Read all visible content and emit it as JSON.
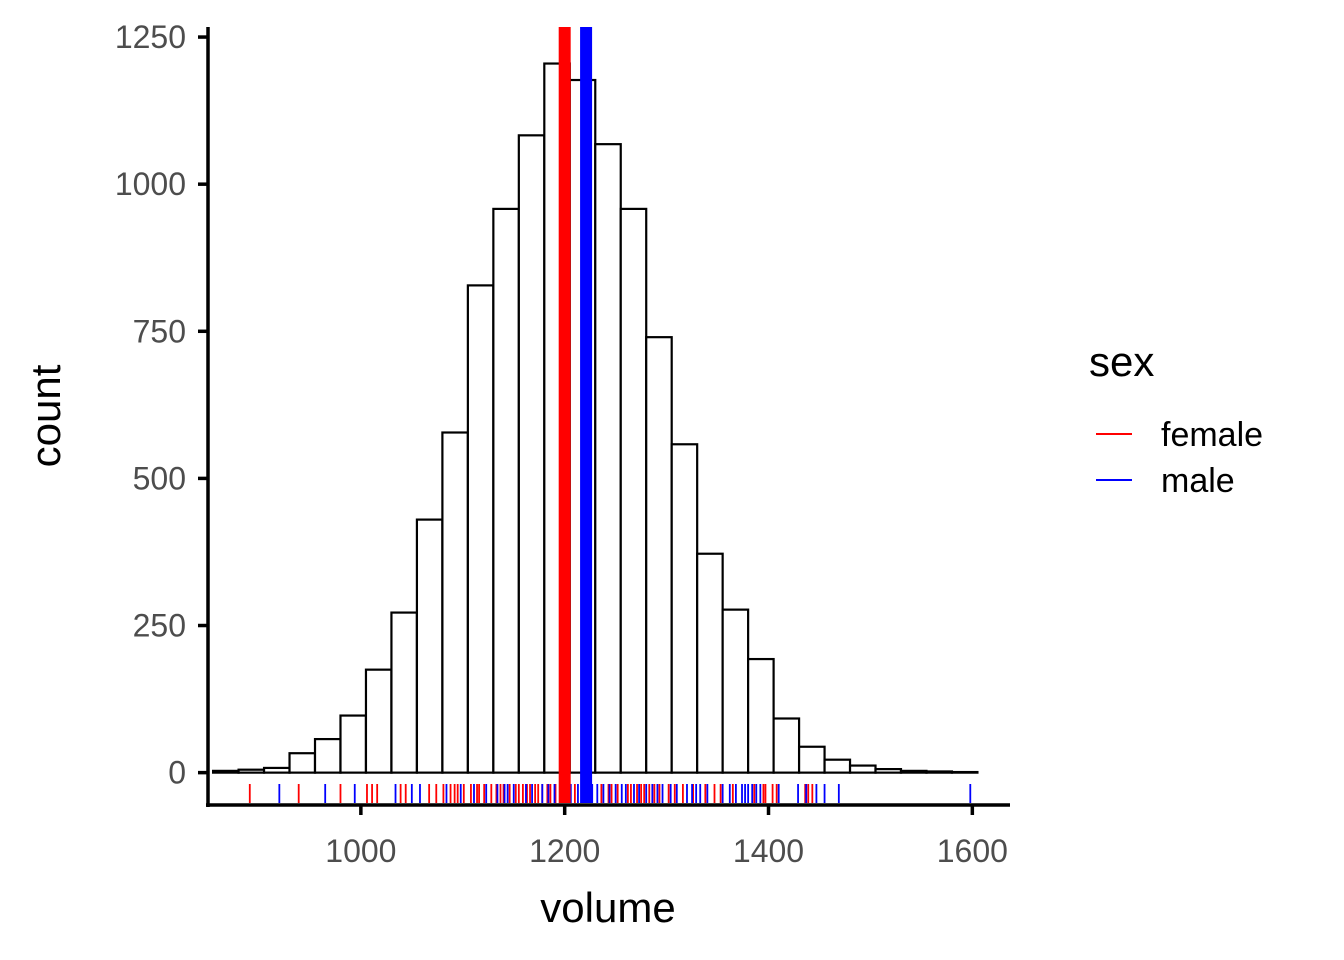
{
  "chart_data": {
    "type": "bar",
    "xlabel": "volume",
    "ylabel": "count",
    "xlim": [
      850,
      1635
    ],
    "ylim": [
      -55,
      1262
    ],
    "x_ticks": [
      1000,
      1200,
      1400,
      1600
    ],
    "y_ticks": [
      0,
      250,
      500,
      750,
      1000,
      1250
    ],
    "histogram": {
      "bin_start": 855,
      "bin_width": 25,
      "counts": [
        3,
        5,
        8,
        33,
        57,
        97,
        175,
        272,
        430,
        578,
        828,
        958,
        1083,
        1205,
        1177,
        1068,
        958,
        740,
        558,
        372,
        277,
        193,
        92,
        44,
        22,
        12,
        6,
        3,
        2,
        1
      ]
    },
    "mean_lines": [
      {
        "group": "female",
        "value": 1200
      },
      {
        "group": "male",
        "value": 1221
      }
    ],
    "rug": {
      "female": [
        891,
        939,
        980,
        1006,
        1011,
        1016,
        1039,
        1044,
        1067,
        1074,
        1081,
        1088,
        1092,
        1095,
        1101,
        1108,
        1114,
        1116,
        1121,
        1128,
        1133,
        1137,
        1140,
        1146,
        1152,
        1155,
        1159,
        1163,
        1166,
        1171,
        1174,
        1178,
        1183,
        1186,
        1191,
        1196,
        1205,
        1210,
        1222,
        1236,
        1243,
        1246,
        1252,
        1262,
        1265,
        1271,
        1275,
        1278,
        1283,
        1288,
        1293,
        1302,
        1308,
        1316,
        1326,
        1338,
        1347,
        1353,
        1365,
        1386,
        1395,
        1397,
        1404,
        1408,
        1436,
        1439,
        1443
      ],
      "male": [
        920,
        965,
        994,
        1034,
        1050,
        1058,
        1084,
        1098,
        1111,
        1123,
        1134,
        1141,
        1144,
        1150,
        1162,
        1168,
        1178,
        1184,
        1190,
        1206,
        1213,
        1218,
        1224,
        1227,
        1232,
        1238,
        1244,
        1250,
        1256,
        1260,
        1268,
        1273,
        1280,
        1286,
        1291,
        1296,
        1304,
        1310,
        1320,
        1325,
        1329,
        1333,
        1340,
        1355,
        1362,
        1368,
        1374,
        1377,
        1380,
        1384,
        1388,
        1392,
        1410,
        1429,
        1437,
        1447,
        1455,
        1469,
        1598
      ]
    },
    "legend": {
      "title": "sex",
      "entries": [
        {
          "label": "female",
          "color": "#ff0000"
        },
        {
          "label": "male",
          "color": "#0000ff"
        }
      ]
    },
    "colors": {
      "female": "#ff0000",
      "male": "#0000ff",
      "bar_fill": "#ffffff",
      "bar_stroke": "#000000"
    }
  }
}
